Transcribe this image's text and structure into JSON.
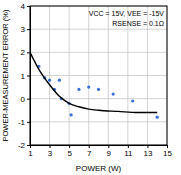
{
  "chart_data": {
    "type": "scatter",
    "xlabel": "POWER (W)",
    "ylabel": "POWER-MEASUREMENT ERROR (%)",
    "annotations": [
      "VCC = 15V, VEE = -15V",
      "RSENSE = 0.1Ω"
    ],
    "xlim": [
      1,
      15
    ],
    "xticks": [
      1,
      3,
      5,
      7,
      9,
      11,
      13,
      15
    ],
    "ylim": [
      -2,
      4
    ],
    "yticks": [
      -2,
      -1,
      0,
      1,
      2,
      3,
      4
    ],
    "grid": true,
    "series": [
      {
        "type": "scatter",
        "marker": "circle",
        "color": "#3b6fd6",
        "x": [
          1.9,
          2.5,
          3.0,
          3.5,
          4.0,
          4.2,
          5.0,
          5.2,
          6.0,
          7.0,
          8.0,
          9.5,
          11.5,
          14.0
        ],
        "values": [
          1.4,
          0.9,
          0.8,
          0.4,
          0.8,
          0.0,
          -0.2,
          -0.7,
          0.4,
          0.5,
          0.4,
          0.2,
          -0.1,
          -0.8
        ]
      },
      {
        "type": "line",
        "line_style": "solid",
        "color": "#000000",
        "x": [
          1,
          2,
          3,
          4,
          5,
          6,
          7,
          8,
          10,
          12,
          14
        ],
        "values": [
          2.0,
          1.2,
          0.6,
          0.1,
          -0.2,
          -0.35,
          -0.45,
          -0.5,
          -0.55,
          -0.6,
          -0.6
        ]
      }
    ]
  }
}
